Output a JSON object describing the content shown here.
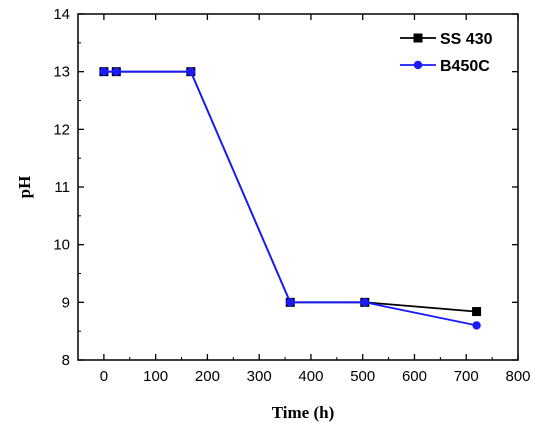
{
  "chart_data": {
    "type": "line",
    "title": "",
    "xlabel": "Time (h)",
    "ylabel": "pH",
    "xlim": [
      -50,
      800
    ],
    "ylim": [
      8,
      14
    ],
    "xticks": [
      "0",
      "100",
      "200",
      "300",
      "400",
      "500",
      "600",
      "700",
      "800"
    ],
    "yticks": [
      "8",
      "9",
      "10",
      "11",
      "12",
      "13",
      "14"
    ],
    "grid": false,
    "legend_position": "top-right",
    "series": [
      {
        "name": "SS 430",
        "color": "#000000",
        "marker": "square",
        "x": [
          0,
          24,
          168,
          360,
          504,
          720
        ],
        "y": [
          13.0,
          13.0,
          13.0,
          9.0,
          9.0,
          8.84
        ]
      },
      {
        "name": "B450C",
        "color": "#1a1aff",
        "marker": "circle",
        "x": [
          0,
          24,
          168,
          360,
          504,
          720
        ],
        "y": [
          13.0,
          13.0,
          13.0,
          9.0,
          9.0,
          8.6
        ]
      }
    ]
  }
}
